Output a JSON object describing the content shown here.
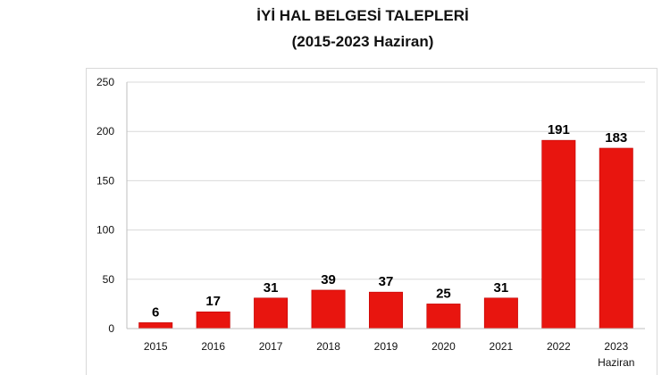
{
  "chart_data": {
    "type": "bar",
    "title": "İYİ HAL BELGESİ TALEPLERİ",
    "subtitle": "(2015-2023 Haziran)",
    "categories": [
      "2015",
      "2016",
      "2017",
      "2018",
      "2019",
      "2020",
      "2021",
      "2022",
      "2023"
    ],
    "category_sublabels": [
      "",
      "",
      "",
      "",
      "",
      "",
      "",
      "",
      "Haziran"
    ],
    "values": [
      6,
      17,
      31,
      39,
      37,
      25,
      31,
      191,
      183
    ],
    "data_labels": [
      "6",
      "17",
      "31",
      "39",
      "37",
      "25",
      "31",
      "191",
      "183"
    ],
    "xlabel": "",
    "ylabel": "",
    "ylim": [
      0,
      250
    ],
    "yticks": [
      0,
      50,
      100,
      150,
      200,
      250
    ],
    "grid": true,
    "legend": "none",
    "bar_color": "#e8150f",
    "bar_edge_color": "#c00000"
  }
}
